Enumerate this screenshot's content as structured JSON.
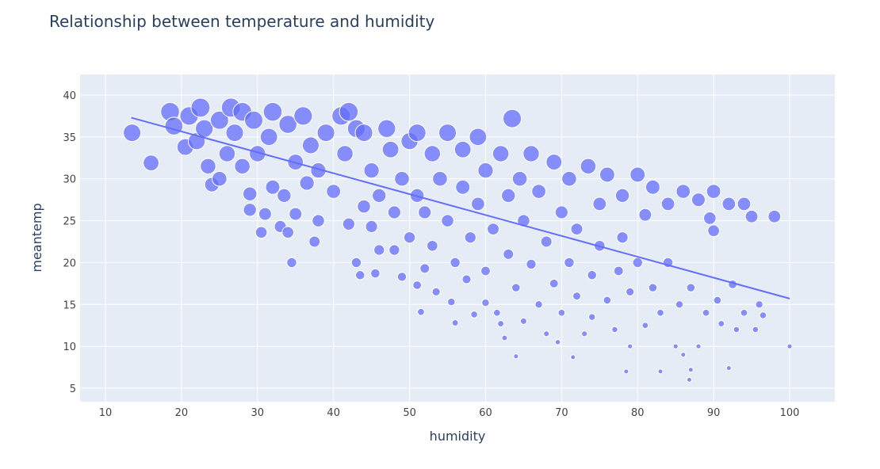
{
  "chart_data": {
    "type": "scatter",
    "title": "Relationship between temperature and humidity",
    "x_label": "humidity",
    "y_label": "meantemp",
    "color": "#636efa",
    "grid": true,
    "xlim": [
      6.66,
      105.94
    ],
    "ylim": [
      3.39,
      42.46
    ],
    "xticks": [
      10,
      20,
      30,
      40,
      50,
      60,
      70,
      80,
      90,
      100
    ],
    "yticks": [
      5,
      10,
      15,
      20,
      25,
      30,
      35,
      40
    ],
    "x": [
      13.5,
      16,
      18.5,
      19,
      20.5,
      21,
      22,
      22.5,
      23,
      23.5,
      24,
      25,
      25,
      26,
      26.5,
      27,
      28,
      28,
      29,
      29.5,
      29,
      30,
      30.5,
      31,
      31.5,
      32,
      32,
      33,
      33.5,
      34,
      34,
      34.5,
      35,
      35,
      36,
      36.5,
      37,
      37.5,
      38,
      38,
      39,
      40,
      41,
      41.5,
      42,
      42,
      43,
      43,
      43.5,
      44,
      44,
      45,
      45,
      45.5,
      46,
      46,
      47,
      47.5,
      48,
      48,
      49,
      49,
      50,
      50,
      51,
      51,
      51,
      51.5,
      52,
      52,
      53,
      53,
      53.5,
      54,
      55,
      55,
      55.5,
      56,
      56,
      57,
      57,
      57.5,
      58,
      58.5,
      59,
      59,
      60,
      60,
      60,
      61,
      61.5,
      62,
      62,
      62.5,
      63,
      63,
      63.5,
      64,
      64,
      64.5,
      65,
      65,
      66,
      66,
      67,
      67,
      68,
      68,
      69,
      69,
      69.5,
      70,
      70,
      71,
      71,
      71.5,
      72,
      72,
      73,
      73.5,
      74,
      74,
      75,
      75,
      76,
      76,
      77,
      77.5,
      78,
      78,
      78.5,
      79,
      79,
      80,
      80,
      81,
      81,
      82,
      82,
      83,
      83,
      84,
      84,
      85,
      85.5,
      86,
      86,
      86.8,
      87,
      87,
      88,
      88,
      89,
      89.5,
      90,
      90,
      90.5,
      91,
      92,
      92,
      92.5,
      93,
      94,
      94,
      95,
      95.5,
      96,
      96.5,
      98,
      100
    ],
    "values": [
      35.5,
      31.9,
      38,
      36.3,
      33.8,
      37.5,
      34.5,
      38.5,
      36,
      31.5,
      29.3,
      37,
      30,
      33,
      38.5,
      35.5,
      38,
      31.5,
      28.2,
      37,
      26.3,
      33,
      23.6,
      25.8,
      35,
      29,
      38,
      24.3,
      28,
      36.5,
      23.6,
      20,
      25.8,
      32,
      37.5,
      29.5,
      34,
      22.5,
      25,
      31,
      35.5,
      28.5,
      37.5,
      33,
      38,
      24.6,
      36,
      20,
      18.5,
      26.7,
      35.5,
      24.3,
      31,
      18.7,
      28,
      21.5,
      36,
      33.5,
      26,
      21.5,
      30,
      18.3,
      23,
      34.5,
      35.5,
      28,
      17.3,
      14.1,
      26,
      19.3,
      33,
      22,
      16.5,
      30,
      35.5,
      25,
      15.3,
      20,
      12.8,
      33.5,
      29,
      18,
      23,
      13.8,
      35,
      27,
      19,
      31,
      15.2,
      24,
      14,
      33,
      12.7,
      11,
      21,
      28,
      37.2,
      8.8,
      17,
      30,
      13,
      25,
      33,
      19.8,
      15,
      28.5,
      11.5,
      22.5,
      32,
      17.5,
      10.5,
      26,
      14,
      30,
      20,
      8.7,
      24,
      16,
      11.5,
      31.5,
      18.5,
      13.5,
      27,
      22,
      30.5,
      15.5,
      12,
      19,
      28,
      23,
      7,
      10,
      16.5,
      30.5,
      20,
      12.5,
      25.7,
      29,
      17,
      7,
      14,
      27,
      20,
      10,
      15,
      28.5,
      9,
      6,
      17,
      7.2,
      27.5,
      10,
      14,
      25.3,
      28.5,
      23.8,
      15.5,
      12.7,
      7.4,
      27,
      17.4,
      12,
      27,
      14,
      25.5,
      12,
      15,
      13.7,
      25.5,
      10
    ],
    "trendline": {
      "x": [
        13.4,
        100
      ],
      "values": [
        37.3,
        15.7
      ]
    }
  }
}
